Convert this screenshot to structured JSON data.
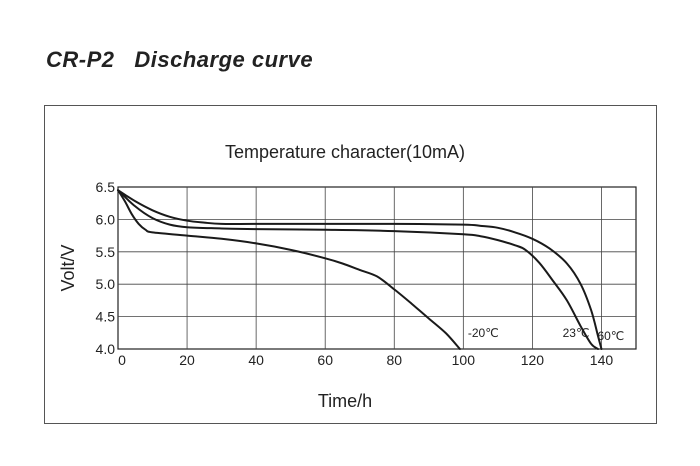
{
  "page": {
    "model": "CR-P2",
    "heading": "Discharge curve"
  },
  "chart_data": {
    "type": "line",
    "title": "Temperature character(10mA)",
    "xlabel": "Time/h",
    "ylabel": "Volt/V",
    "xlim": [
      0,
      150
    ],
    "ylim": [
      4.0,
      6.5
    ],
    "x_ticks": [
      0,
      20,
      40,
      60,
      80,
      100,
      120,
      140
    ],
    "x_tick_labels": [
      "0",
      "20",
      "40",
      "60",
      "80",
      "100",
      "120",
      "140"
    ],
    "y_ticks": [
      4.0,
      4.5,
      5.0,
      5.5,
      6.0,
      6.5
    ],
    "y_tick_labels": [
      "4.0",
      "4.5",
      "5.0",
      "5.5",
      "6.0",
      "6.5"
    ],
    "grid": true,
    "series": [
      {
        "name": "-20℃",
        "label": "-20℃",
        "x": [
          0,
          2,
          4,
          6,
          8,
          10,
          20,
          30,
          40,
          50,
          60,
          65,
          70,
          75,
          80,
          85,
          90,
          95,
          99
        ],
        "y": [
          6.45,
          6.28,
          6.08,
          5.93,
          5.84,
          5.8,
          5.75,
          5.7,
          5.63,
          5.53,
          5.4,
          5.32,
          5.22,
          5.12,
          4.92,
          4.7,
          4.47,
          4.24,
          4.0
        ]
      },
      {
        "name": "23℃",
        "label": "23℃",
        "x": [
          0,
          5,
          10,
          15,
          20,
          30,
          40,
          60,
          80,
          100,
          105,
          110,
          115,
          118,
          122,
          126,
          130,
          134,
          137,
          139
        ],
        "y": [
          6.45,
          6.2,
          6.02,
          5.92,
          5.88,
          5.86,
          5.85,
          5.84,
          5.82,
          5.77,
          5.74,
          5.68,
          5.6,
          5.53,
          5.33,
          5.05,
          4.75,
          4.35,
          4.08,
          4.0
        ]
      },
      {
        "name": "60℃",
        "label": "60℃",
        "x": [
          0,
          5,
          10,
          15,
          20,
          25,
          30,
          40,
          60,
          80,
          100,
          105,
          110,
          115,
          120,
          125,
          130,
          134,
          137,
          139,
          140
        ],
        "y": [
          6.45,
          6.28,
          6.14,
          6.04,
          5.98,
          5.95,
          5.93,
          5.93,
          5.93,
          5.93,
          5.92,
          5.9,
          5.87,
          5.8,
          5.7,
          5.55,
          5.32,
          5.0,
          4.6,
          4.2,
          4.0
        ]
      }
    ]
  }
}
